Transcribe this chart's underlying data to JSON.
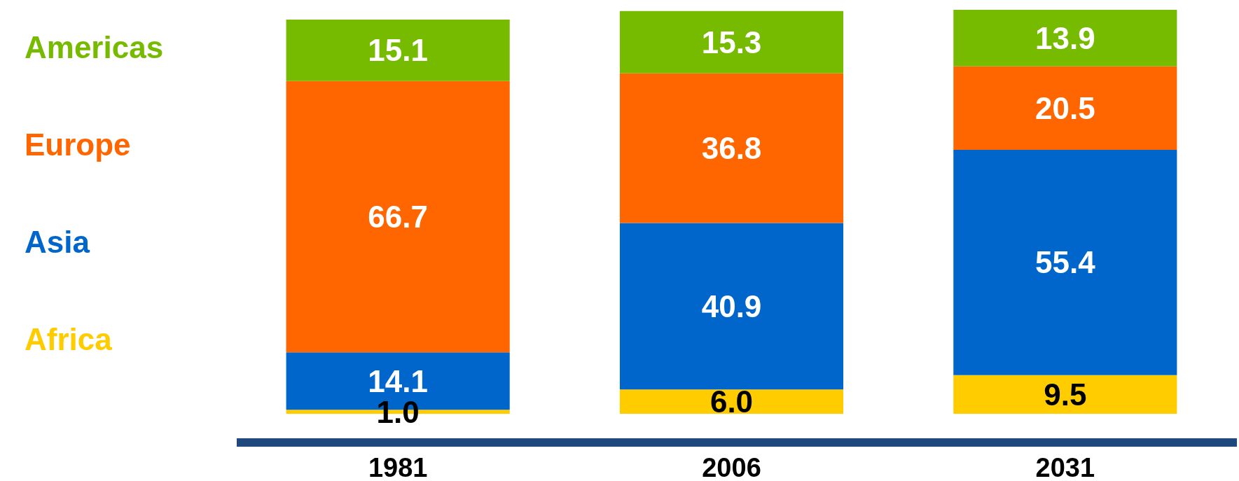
{
  "chart_data": {
    "type": "bar",
    "stacked": true,
    "legend": "left",
    "grid": false,
    "categories": [
      "1981",
      "2006",
      "2031"
    ],
    "series": [
      {
        "name": "Africa",
        "color": "#ffcc00",
        "values": [
          1.0,
          6.0,
          9.5
        ],
        "value_labels": [
          "1.0",
          "6.0",
          "9.5"
        ]
      },
      {
        "name": "Asia",
        "color": "#0066cc",
        "values": [
          14.1,
          40.9,
          55.4
        ],
        "value_labels": [
          "14.1",
          "40.9",
          "55.4"
        ]
      },
      {
        "name": "Europe",
        "color": "#ff6600",
        "values": [
          66.7,
          36.8,
          20.5
        ],
        "value_labels": [
          "66.7",
          "36.8",
          "20.5"
        ]
      },
      {
        "name": "Americas",
        "color": "#77bb00",
        "values": [
          15.1,
          15.3,
          13.9
        ],
        "value_labels": [
          "15.1",
          "15.3",
          "13.9"
        ]
      }
    ]
  }
}
